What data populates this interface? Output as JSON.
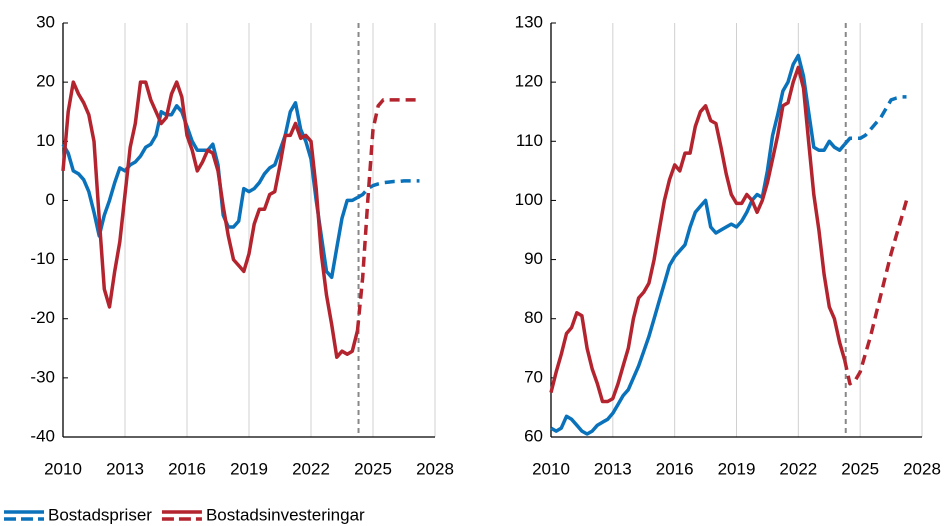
{
  "legend": [
    {
      "name": "Bostadspriser",
      "color": "#0a72ba"
    },
    {
      "name": "Bostadsinvesteringar",
      "color": "#b3242f"
    }
  ],
  "chart_data": [
    {
      "type": "line",
      "x": [
        2010,
        2010.25,
        2010.5,
        2010.75,
        2011,
        2011.25,
        2011.5,
        2011.75,
        2012,
        2012.25,
        2012.5,
        2012.75,
        2013,
        2013.25,
        2013.5,
        2013.75,
        2014,
        2014.25,
        2014.5,
        2014.75,
        2015,
        2015.25,
        2015.5,
        2015.75,
        2016,
        2016.25,
        2016.5,
        2016.75,
        2017,
        2017.25,
        2017.5,
        2017.75,
        2018,
        2018.25,
        2018.5,
        2018.75,
        2019,
        2019.25,
        2019.5,
        2019.75,
        2020,
        2020.25,
        2020.5,
        2020.75,
        2021,
        2021.25,
        2021.5,
        2021.75,
        2022,
        2022.25,
        2022.5,
        2022.75,
        2023,
        2023.25,
        2023.5,
        2023.75,
        2024,
        2024.25,
        2024.5,
        2024.75,
        2025,
        2025.25,
        2025.5,
        2025.75,
        2026,
        2026.25,
        2026.5,
        2026.75,
        2027,
        2027.25
      ],
      "series": [
        {
          "color": "#0a72ba",
          "values": [
            9.5,
            8,
            5,
            4.5,
            3.5,
            1.5,
            -2,
            -6,
            -2.5,
            0,
            3,
            5.5,
            5,
            6,
            6.5,
            7.5,
            9,
            9.5,
            11,
            15,
            14.5,
            14.5,
            16,
            15,
            12.5,
            10,
            8.5,
            8.5,
            8.5,
            9.5,
            6,
            -2.5,
            -4.5,
            -4.5,
            -3.5,
            2,
            1.5,
            2,
            3,
            4.5,
            5.5,
            6,
            8.5,
            11,
            15,
            16.5,
            12,
            10,
            7,
            0,
            -6,
            -12,
            -13,
            -8,
            -3,
            0,
            0,
            0.5,
            1,
            2,
            2.5,
            2.8,
            3,
            3.1,
            3.2,
            3.2,
            3.3,
            3.3,
            3.3,
            3.3
          ]
        },
        {
          "color": "#b3242f",
          "values": [
            5,
            15,
            20,
            18,
            16.5,
            14.5,
            10,
            -3,
            -15,
            -18,
            -12,
            -7,
            1,
            9,
            13,
            20,
            20,
            17,
            15,
            13,
            14,
            18,
            20,
            17.5,
            11,
            8.5,
            5,
            6.5,
            8.5,
            8,
            5,
            -1,
            -6,
            -10,
            -11,
            -12,
            -9,
            -4,
            -1.5,
            -1.5,
            1,
            1.5,
            6,
            11,
            11,
            13,
            10.5,
            11,
            10,
            2,
            -9,
            -16,
            -21,
            -26.5,
            -25.5,
            -26,
            -25.5,
            -22,
            -13,
            0,
            12,
            16,
            17,
            17,
            17,
            17,
            17,
            17,
            17,
            17
          ]
        }
      ],
      "xlim": [
        2010,
        2028
      ],
      "xticks": [
        2010,
        2013,
        2016,
        2019,
        2022,
        2025,
        2028
      ],
      "ylim": [
        -40,
        30
      ],
      "yticks": [
        -40,
        -30,
        -20,
        -10,
        0,
        10,
        20,
        30
      ],
      "vline": 2024.3,
      "grid": true
    },
    {
      "type": "line",
      "x": [
        2010,
        2010.25,
        2010.5,
        2010.75,
        2011,
        2011.25,
        2011.5,
        2011.75,
        2012,
        2012.25,
        2012.5,
        2012.75,
        2013,
        2013.25,
        2013.5,
        2013.75,
        2014,
        2014.25,
        2014.5,
        2014.75,
        2015,
        2015.25,
        2015.5,
        2015.75,
        2016,
        2016.25,
        2016.5,
        2016.75,
        2017,
        2017.25,
        2017.5,
        2017.75,
        2018,
        2018.25,
        2018.5,
        2018.75,
        2019,
        2019.25,
        2019.5,
        2019.75,
        2020,
        2020.25,
        2020.5,
        2020.75,
        2021,
        2021.25,
        2021.5,
        2021.75,
        2022,
        2022.25,
        2022.5,
        2022.75,
        2023,
        2023.25,
        2023.5,
        2023.75,
        2024,
        2024.25,
        2024.5,
        2024.75,
        2025,
        2025.25,
        2025.5,
        2025.75,
        2026,
        2026.25,
        2026.5,
        2026.75,
        2027,
        2027.25
      ],
      "series": [
        {
          "color": "#0a72ba",
          "values": [
            61.5,
            61,
            61.5,
            63.5,
            63,
            62,
            61,
            60.5,
            61,
            62,
            62.5,
            63,
            64,
            65.5,
            67,
            68,
            70,
            72,
            74.5,
            77,
            80,
            83,
            86,
            89,
            90.5,
            91.5,
            92.5,
            95.5,
            98,
            99,
            100,
            95.5,
            94.5,
            95,
            95.5,
            96,
            95.5,
            96.5,
            98,
            100,
            101,
            100.5,
            105,
            111,
            114.5,
            118.5,
            120,
            123,
            124.5,
            121,
            115,
            109,
            108.5,
            108.5,
            110,
            109,
            108.5,
            109.5,
            110.5,
            110.5,
            110.5,
            111,
            112,
            113,
            114,
            115.5,
            117,
            117.3,
            117.5,
            117.5
          ]
        },
        {
          "color": "#b3242f",
          "values": [
            67.5,
            71,
            74,
            77.5,
            78.5,
            81,
            80.5,
            75,
            71.5,
            69,
            66,
            66,
            66.5,
            69,
            72,
            75,
            80,
            83.5,
            84.5,
            86,
            90,
            95,
            100,
            103.5,
            106,
            105,
            108,
            108,
            112.5,
            115,
            116,
            113.5,
            113,
            109,
            104.5,
            101,
            99.5,
            99.5,
            101,
            100,
            98,
            100,
            103,
            107,
            111,
            116,
            116.5,
            120,
            122.5,
            119,
            110,
            101,
            95,
            87.5,
            82,
            80,
            76,
            73,
            69,
            69.5,
            71,
            74,
            77,
            80.5,
            84,
            87.5,
            91,
            94,
            97,
            100
          ]
        }
      ],
      "xlim": [
        2010,
        2028
      ],
      "xticks": [
        2010,
        2013,
        2016,
        2019,
        2022,
        2025,
        2028
      ],
      "ylim": [
        60,
        130
      ],
      "yticks": [
        60,
        70,
        80,
        90,
        100,
        110,
        120,
        130
      ],
      "vline": 2024.3,
      "grid": true
    }
  ]
}
